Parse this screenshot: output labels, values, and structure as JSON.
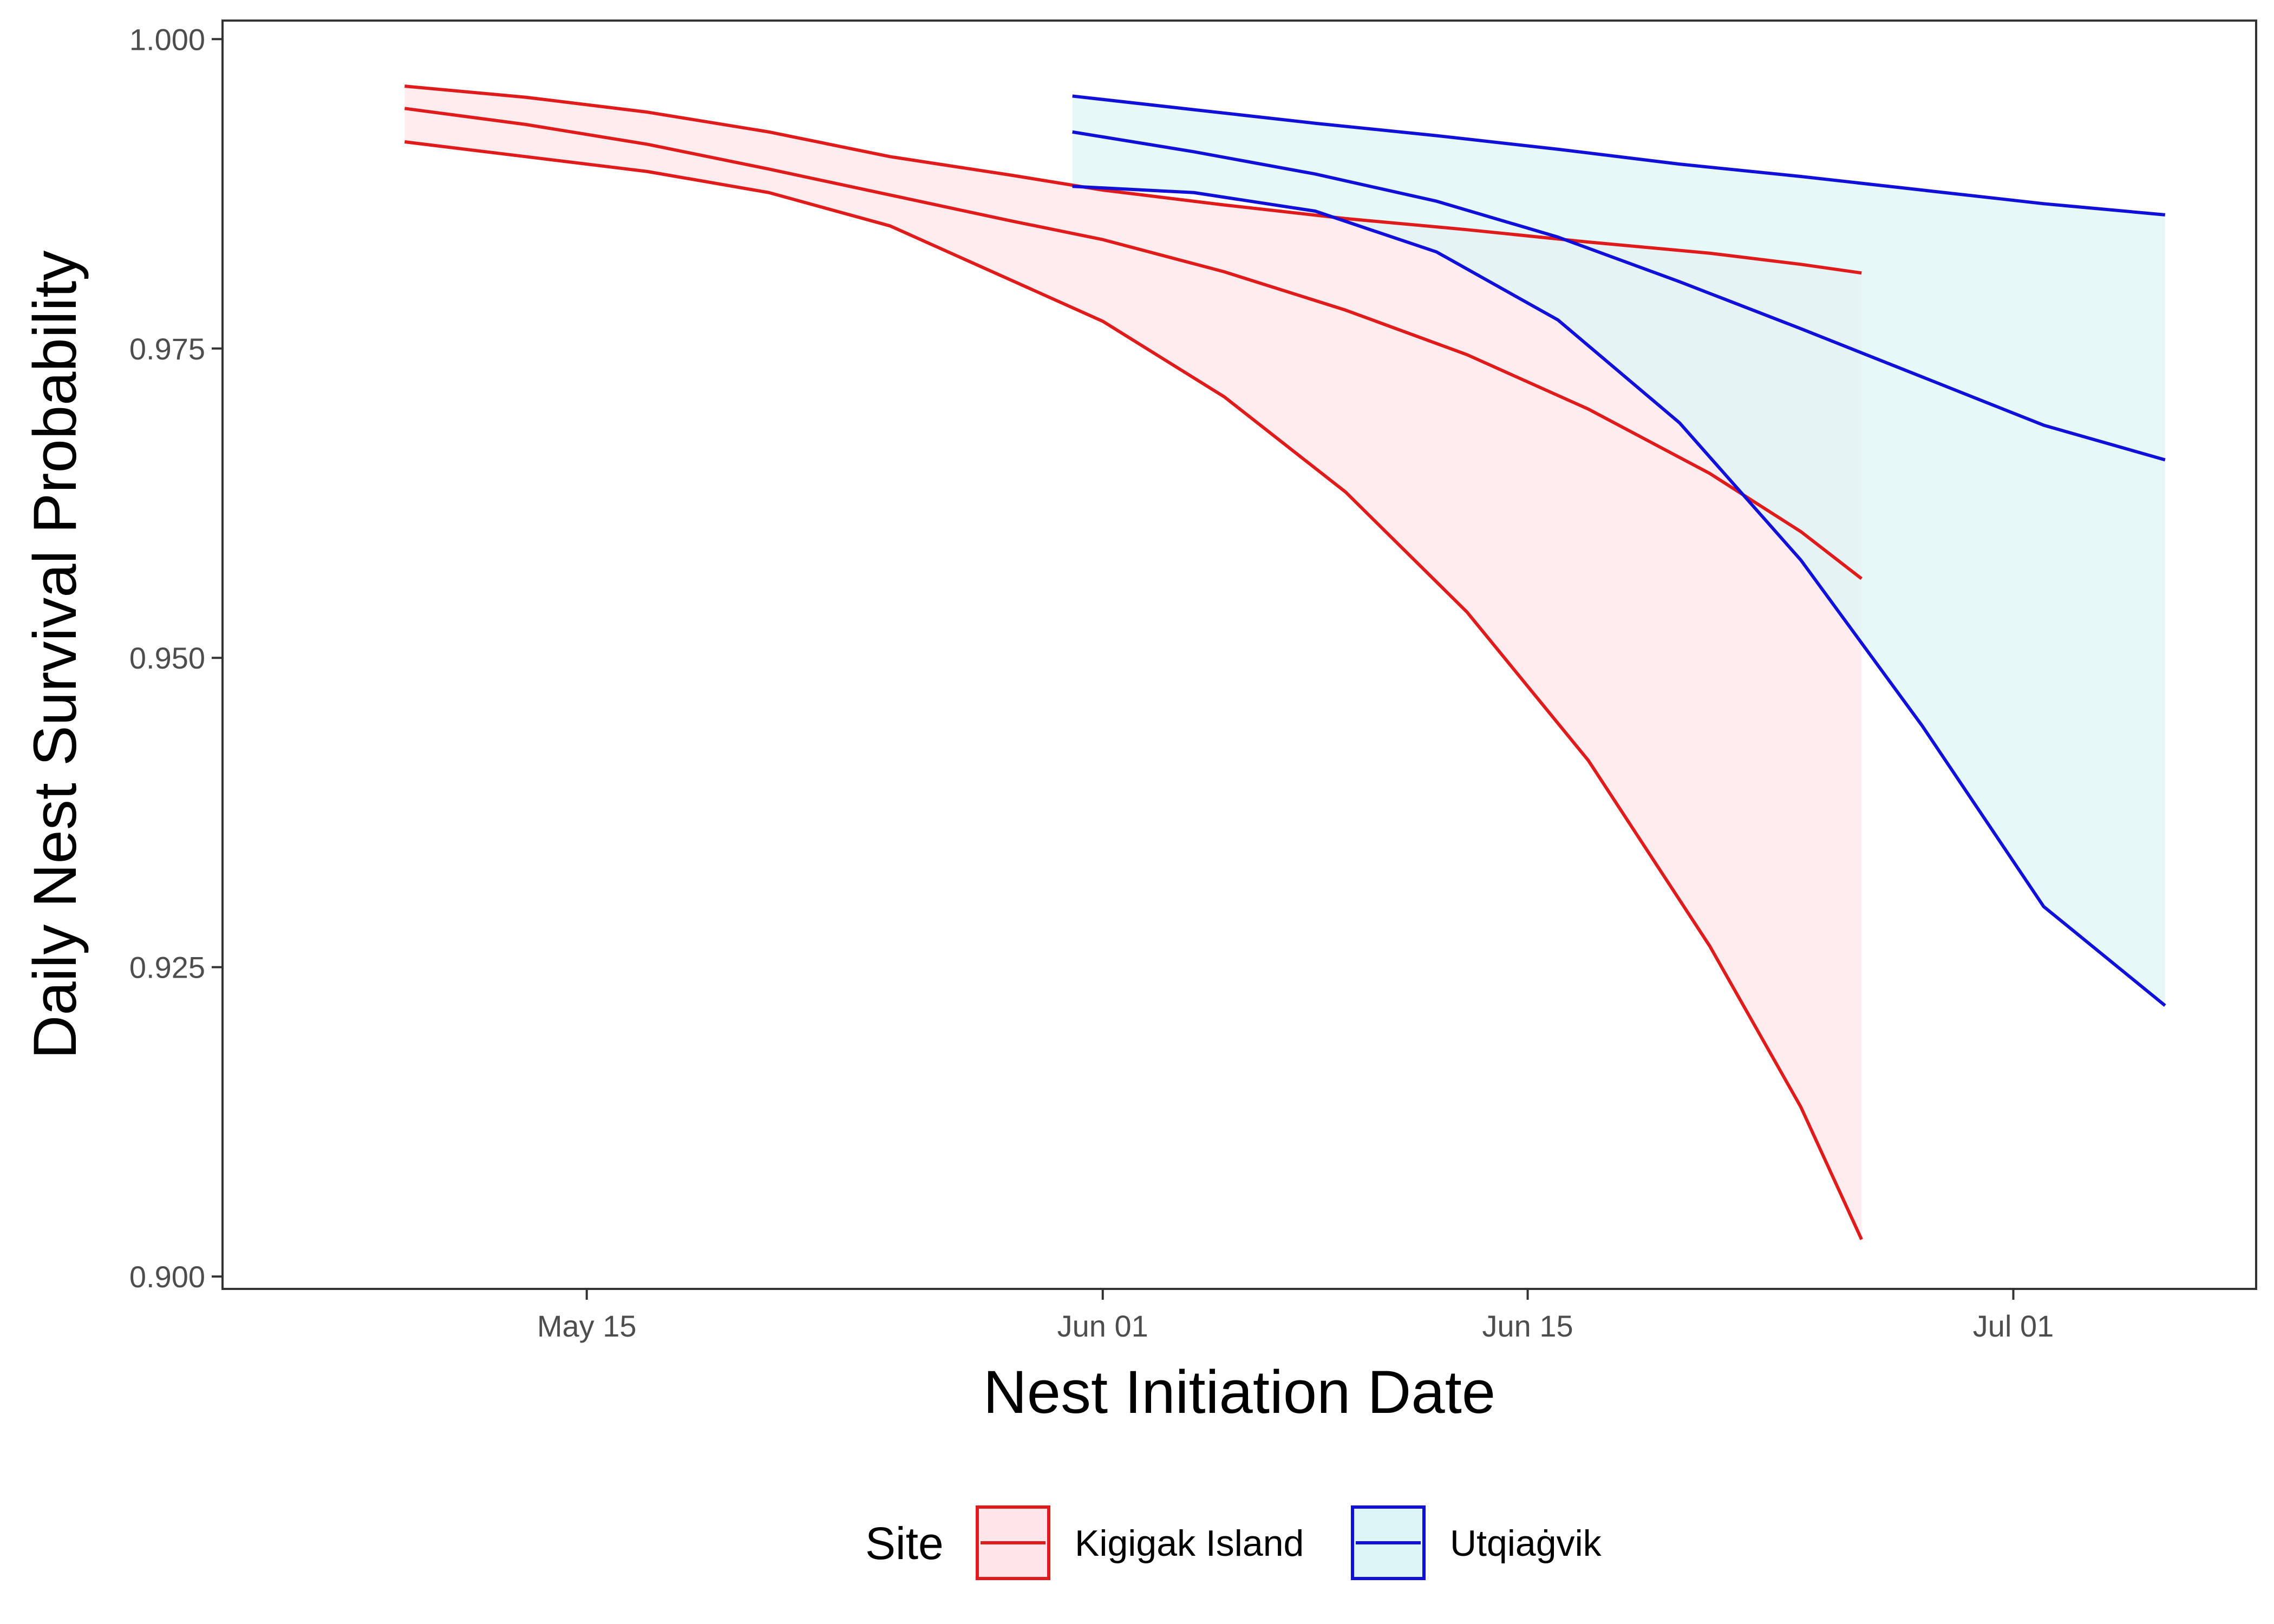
{
  "chart_data": {
    "type": "line",
    "title": "",
    "xlabel": "Nest Initiation Date",
    "ylabel": "Daily Nest Survival Probability",
    "x_axis_type": "date",
    "xlim": [
      "2019-05-03",
      "2019-07-09"
    ],
    "ylim": [
      0.899,
      1.0015
    ],
    "x_ticks": [
      {
        "date": "2019-05-15",
        "label": "May 15"
      },
      {
        "date": "2019-06-01",
        "label": "Jun 01"
      },
      {
        "date": "2019-06-15",
        "label": "Jun 15"
      },
      {
        "date": "2019-07-01",
        "label": "Jul 01"
      }
    ],
    "y_ticks": [
      {
        "value": 0.9,
        "label": "0.900"
      },
      {
        "value": 0.925,
        "label": "0.925"
      },
      {
        "value": 0.95,
        "label": "0.950"
      },
      {
        "value": 0.975,
        "label": "0.975"
      },
      {
        "value": 1.0,
        "label": "1.000"
      }
    ],
    "grid": false,
    "legend": {
      "title": "Site",
      "position": "bottom"
    },
    "series": [
      {
        "name": "Kigigak Island",
        "color": "#e01b1b",
        "fill": "#ffe6e8",
        "x": [
          "2019-05-09",
          "2019-05-13",
          "2019-05-17",
          "2019-05-21",
          "2019-05-25",
          "2019-05-29",
          "2019-06-01",
          "2019-06-05",
          "2019-06-09",
          "2019-06-13",
          "2019-06-17",
          "2019-06-21",
          "2019-06-24",
          "2019-06-26"
        ],
        "estimate": [
          0.9944,
          0.9931,
          0.9915,
          0.9895,
          0.9874,
          0.9853,
          0.9838,
          0.9812,
          0.9781,
          0.9745,
          0.9701,
          0.9649,
          0.9602,
          0.9564
        ],
        "upper": [
          0.9962,
          0.9953,
          0.9941,
          0.9925,
          0.9905,
          0.989,
          0.9878,
          0.9866,
          0.9855,
          0.9846,
          0.9836,
          0.9827,
          0.9818,
          0.9811
        ],
        "lower": [
          0.9917,
          0.9905,
          0.9893,
          0.9876,
          0.9849,
          0.9805,
          0.9772,
          0.9711,
          0.9634,
          0.9537,
          0.9417,
          0.9267,
          0.9137,
          0.903
        ]
      },
      {
        "name": "Utqiaġvik",
        "color": "#1010d8",
        "fill": "#ddf5f6",
        "x": [
          "2019-05-31",
          "2019-06-04",
          "2019-06-08",
          "2019-06-12",
          "2019-06-16",
          "2019-06-20",
          "2019-06-24",
          "2019-06-28",
          "2019-07-02",
          "2019-07-06"
        ],
        "estimate": [
          0.9925,
          0.9909,
          0.9891,
          0.9869,
          0.984,
          0.9804,
          0.9766,
          0.9727,
          0.9688,
          0.966
        ],
        "upper": [
          0.9954,
          0.9943,
          0.9932,
          0.9922,
          0.9911,
          0.9899,
          0.9889,
          0.9878,
          0.9867,
          0.9858
        ],
        "lower": [
          0.9881,
          0.9876,
          0.9861,
          0.9828,
          0.9773,
          0.969,
          0.9579,
          0.9445,
          0.9299,
          0.9219
        ]
      }
    ]
  }
}
